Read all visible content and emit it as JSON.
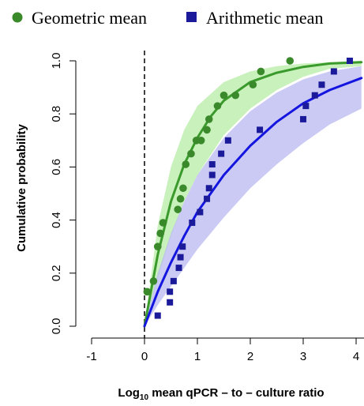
{
  "chart_data": {
    "type": "scatter",
    "xlabel_parts": {
      "prefix": "Log",
      "subscript": "10",
      "suffix": " mean qPCR – to – culture ratio"
    },
    "ylabel": "Cumulative probability",
    "xlim": [
      -1.0,
      4.1
    ],
    "ylim": [
      -0.04,
      1.04
    ],
    "xticks": [
      -1,
      0,
      1,
      2,
      3,
      4
    ],
    "yticks": [
      0.0,
      0.2,
      0.4,
      0.6,
      0.8,
      1.0
    ],
    "xtick_labels": [
      "-1",
      "0",
      "1",
      "2",
      "3",
      "4"
    ],
    "ytick_labels": [
      "0.0",
      "0.2",
      "0.4",
      "0.6",
      "0.8",
      "1.0"
    ],
    "reference_line_x": 0,
    "legend_position": "top",
    "series": [
      {
        "name": "Geometric mean",
        "marker": "circle",
        "color": "#3a8a2c",
        "fit_color": "#3a9a2c",
        "band_color": "#bfeeb0",
        "points": [
          {
            "x": 0.05,
            "y": 0.13
          },
          {
            "x": 0.17,
            "y": 0.17
          },
          {
            "x": 0.25,
            "y": 0.3
          },
          {
            "x": 0.3,
            "y": 0.35
          },
          {
            "x": 0.35,
            "y": 0.39
          },
          {
            "x": 0.63,
            "y": 0.44
          },
          {
            "x": 0.68,
            "y": 0.48
          },
          {
            "x": 0.73,
            "y": 0.52
          },
          {
            "x": 0.78,
            "y": 0.61
          },
          {
            "x": 0.88,
            "y": 0.65
          },
          {
            "x": 0.98,
            "y": 0.7
          },
          {
            "x": 1.07,
            "y": 0.7
          },
          {
            "x": 1.18,
            "y": 0.74
          },
          {
            "x": 1.22,
            "y": 0.78
          },
          {
            "x": 1.38,
            "y": 0.83
          },
          {
            "x": 1.5,
            "y": 0.87
          },
          {
            "x": 1.72,
            "y": 0.87
          },
          {
            "x": 2.05,
            "y": 0.91
          },
          {
            "x": 2.2,
            "y": 0.96
          },
          {
            "x": 2.75,
            "y": 1.0
          }
        ],
        "fit": [
          {
            "x": 0.0,
            "y": 0.0
          },
          {
            "x": 0.25,
            "y": 0.27
          },
          {
            "x": 0.5,
            "y": 0.47
          },
          {
            "x": 0.75,
            "y": 0.61
          },
          {
            "x": 1.0,
            "y": 0.71
          },
          {
            "x": 1.25,
            "y": 0.79
          },
          {
            "x": 1.5,
            "y": 0.85
          },
          {
            "x": 2.0,
            "y": 0.92
          },
          {
            "x": 2.5,
            "y": 0.955
          },
          {
            "x": 3.0,
            "y": 0.977
          },
          {
            "x": 3.5,
            "y": 0.99
          },
          {
            "x": 4.1,
            "y": 0.995
          }
        ],
        "band_upper": [
          {
            "x": 0.0,
            "y": 0.0
          },
          {
            "x": 0.25,
            "y": 0.38
          },
          {
            "x": 0.5,
            "y": 0.6
          },
          {
            "x": 0.75,
            "y": 0.74
          },
          {
            "x": 1.0,
            "y": 0.83
          },
          {
            "x": 1.5,
            "y": 0.92
          },
          {
            "x": 2.0,
            "y": 0.96
          },
          {
            "x": 2.5,
            "y": 0.98
          },
          {
            "x": 3.0,
            "y": 0.99
          },
          {
            "x": 4.1,
            "y": 1.0
          }
        ],
        "band_lower": [
          {
            "x": 0.0,
            "y": 0.0
          },
          {
            "x": 0.25,
            "y": 0.18
          },
          {
            "x": 0.5,
            "y": 0.34
          },
          {
            "x": 0.75,
            "y": 0.47
          },
          {
            "x": 1.0,
            "y": 0.57
          },
          {
            "x": 1.5,
            "y": 0.72
          },
          {
            "x": 2.0,
            "y": 0.82
          },
          {
            "x": 2.5,
            "y": 0.89
          },
          {
            "x": 3.0,
            "y": 0.94
          },
          {
            "x": 3.5,
            "y": 0.97
          },
          {
            "x": 4.1,
            "y": 0.98
          }
        ]
      },
      {
        "name": "Arithmetic mean",
        "marker": "square",
        "color": "#1a1a9a",
        "fit_color": "#1515e0",
        "band_color": "#b8b8f0",
        "points": [
          {
            "x": 0.25,
            "y": 0.04
          },
          {
            "x": 0.48,
            "y": 0.09
          },
          {
            "x": 0.48,
            "y": 0.13
          },
          {
            "x": 0.55,
            "y": 0.17
          },
          {
            "x": 0.65,
            "y": 0.22
          },
          {
            "x": 0.68,
            "y": 0.26
          },
          {
            "x": 0.72,
            "y": 0.3
          },
          {
            "x": 0.9,
            "y": 0.39
          },
          {
            "x": 1.05,
            "y": 0.43
          },
          {
            "x": 1.18,
            "y": 0.48
          },
          {
            "x": 1.22,
            "y": 0.52
          },
          {
            "x": 1.28,
            "y": 0.57
          },
          {
            "x": 1.28,
            "y": 0.61
          },
          {
            "x": 1.45,
            "y": 0.65
          },
          {
            "x": 1.58,
            "y": 0.7
          },
          {
            "x": 2.18,
            "y": 0.74
          },
          {
            "x": 3.0,
            "y": 0.78
          },
          {
            "x": 3.05,
            "y": 0.83
          },
          {
            "x": 3.22,
            "y": 0.87
          },
          {
            "x": 3.35,
            "y": 0.91
          },
          {
            "x": 3.58,
            "y": 0.96
          },
          {
            "x": 3.88,
            "y": 1.0
          }
        ],
        "fit": [
          {
            "x": 0.0,
            "y": 0.0
          },
          {
            "x": 0.25,
            "y": 0.13
          },
          {
            "x": 0.5,
            "y": 0.24
          },
          {
            "x": 0.75,
            "y": 0.34
          },
          {
            "x": 1.0,
            "y": 0.43
          },
          {
            "x": 1.5,
            "y": 0.57
          },
          {
            "x": 2.0,
            "y": 0.68
          },
          {
            "x": 2.5,
            "y": 0.77
          },
          {
            "x": 3.0,
            "y": 0.84
          },
          {
            "x": 3.5,
            "y": 0.89
          },
          {
            "x": 4.1,
            "y": 0.935
          }
        ],
        "band_upper": [
          {
            "x": 0.0,
            "y": 0.0
          },
          {
            "x": 0.25,
            "y": 0.2
          },
          {
            "x": 0.5,
            "y": 0.35
          },
          {
            "x": 0.75,
            "y": 0.47
          },
          {
            "x": 1.0,
            "y": 0.57
          },
          {
            "x": 1.5,
            "y": 0.71
          },
          {
            "x": 2.0,
            "y": 0.81
          },
          {
            "x": 2.5,
            "y": 0.88
          },
          {
            "x": 3.0,
            "y": 0.93
          },
          {
            "x": 3.5,
            "y": 0.96
          },
          {
            "x": 4.1,
            "y": 0.98
          }
        ],
        "band_lower": [
          {
            "x": 0.0,
            "y": 0.0
          },
          {
            "x": 0.25,
            "y": 0.08
          },
          {
            "x": 0.5,
            "y": 0.15
          },
          {
            "x": 0.75,
            "y": 0.22
          },
          {
            "x": 1.0,
            "y": 0.29
          },
          {
            "x": 1.5,
            "y": 0.41
          },
          {
            "x": 2.0,
            "y": 0.52
          },
          {
            "x": 2.5,
            "y": 0.61
          },
          {
            "x": 3.0,
            "y": 0.69
          },
          {
            "x": 3.5,
            "y": 0.76
          },
          {
            "x": 4.1,
            "y": 0.82
          }
        ]
      }
    ]
  }
}
